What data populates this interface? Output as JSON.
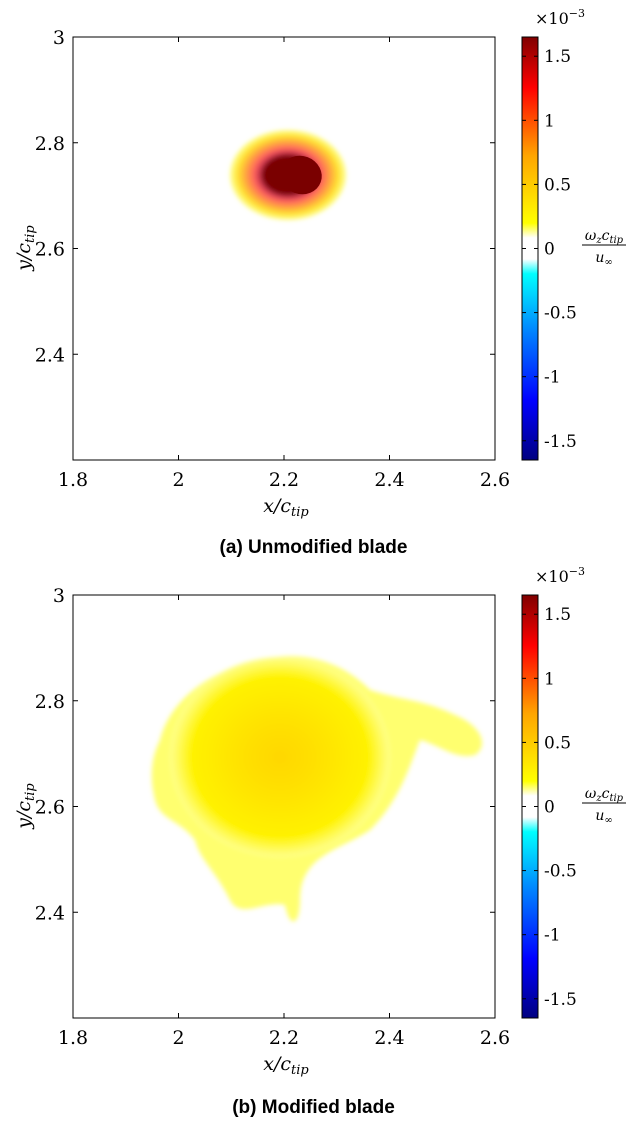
{
  "colors": {
    "colormap": [
      "#000080",
      "#0000ff",
      "#0080ff",
      "#00ffff",
      "#ffffff",
      "#ffff00",
      "#ffa500",
      "#ff0000",
      "#800000"
    ],
    "axis": "#000000",
    "background": "#ffffff"
  },
  "chart_data": [
    {
      "type": "heatmap",
      "caption": "(a) Unmodified blade",
      "xlabel": "x/c_tip",
      "ylabel": "y/c_tip",
      "xlim": [
        1.8,
        2.6
      ],
      "ylim": [
        2.2,
        3.0
      ],
      "xticks": [
        "1.8",
        "2",
        "2.2",
        "2.4",
        "2.6"
      ],
      "yticks": [
        "2.4",
        "2.6",
        "2.8",
        "3"
      ],
      "colorbar": {
        "label": "ω_z c_tip / u_∞",
        "exponent": "×10^-3",
        "clim": [
          -1.65,
          1.65
        ],
        "ticks": [
          "-1.5",
          "-1",
          "-0.5",
          "0",
          "0.5",
          "1",
          "1.5"
        ]
      },
      "features": [
        {
          "name": "vortex core",
          "center": [
            2.232,
            2.74
          ],
          "radius": [
            0.105,
            0.08
          ],
          "peak": 1.65
        }
      ]
    },
    {
      "type": "heatmap",
      "caption": "(b) Modified blade",
      "xlabel": "x/c_tip",
      "ylabel": "y/c_tip",
      "xlim": [
        1.8,
        2.6
      ],
      "ylim": [
        2.2,
        3.0
      ],
      "xticks": [
        "1.8",
        "2",
        "2.2",
        "2.4",
        "2.6"
      ],
      "yticks": [
        "2.4",
        "2.6",
        "2.8",
        "3"
      ],
      "colorbar": {
        "label": "ω_z c_tip / u_∞",
        "exponent": "×10^-3",
        "clim": [
          -1.65,
          1.65
        ],
        "ticks": [
          "-1.5",
          "-1",
          "-0.5",
          "0",
          "0.5",
          "1",
          "1.5"
        ]
      },
      "features": [
        {
          "name": "diffuse vortex",
          "center": [
            2.18,
            2.64
          ],
          "radius": [
            0.22,
            0.2
          ],
          "peak": 0.32
        }
      ]
    }
  ]
}
